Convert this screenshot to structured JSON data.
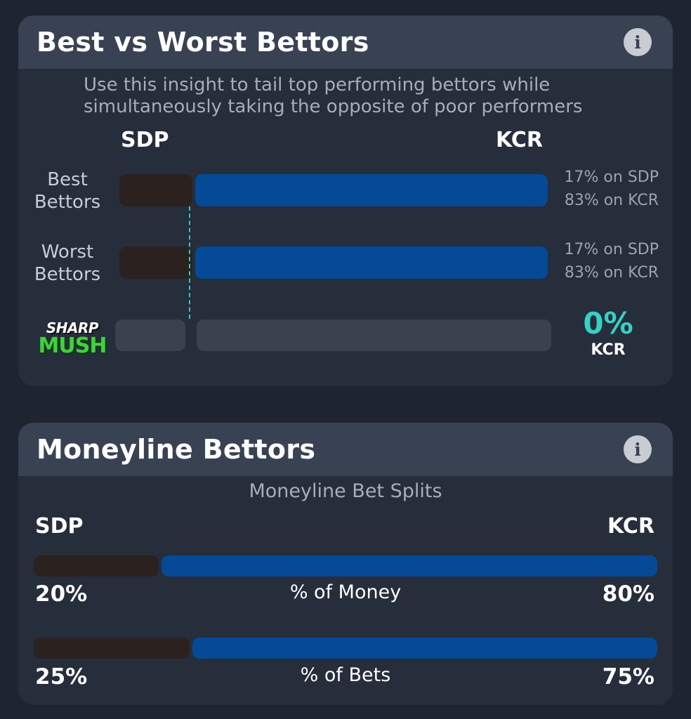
{
  "best_worst": {
    "title": "Best vs Worst Bettors",
    "info_glyph": "i",
    "subtitle_line1": "Use this insight to tail top performing bettors while",
    "subtitle_line2": "simultaneously taking the opposite of poor performers",
    "team_left": "SDP",
    "team_right": "KCR",
    "rows": [
      {
        "label_line1": "Best",
        "label_line2": "Bettors",
        "left_fraction": 0.17,
        "pct_left_text": "17% on SDP",
        "pct_right_text": "83% on KCR"
      },
      {
        "label_line1": "Worst",
        "label_line2": "Bettors",
        "left_fraction": 0.17,
        "pct_left_text": "17% on SDP",
        "pct_right_text": "83% on KCR"
      }
    ],
    "sharp_mush": {
      "logo_top": "SHARP",
      "logo_bottom": "MUSH",
      "value_text": "0%",
      "team": "KCR"
    }
  },
  "moneyline": {
    "title": "Moneyline Bettors",
    "info_glyph": "i",
    "caption": "Moneyline Bet Splits",
    "team_left": "SDP",
    "team_right": "KCR",
    "splits": [
      {
        "label": "% of Money",
        "left_fraction": 0.2,
        "left_pct": "20%",
        "right_pct": "80%"
      },
      {
        "label": "% of Bets",
        "left_fraction": 0.25,
        "left_pct": "25%",
        "right_pct": "75%"
      }
    ]
  },
  "colors": {
    "sdp_bar": "#2b2220",
    "kcr_bar": "#044a97",
    "accent_teal": "#37d0c4",
    "mush_green": "#3fd23a"
  }
}
